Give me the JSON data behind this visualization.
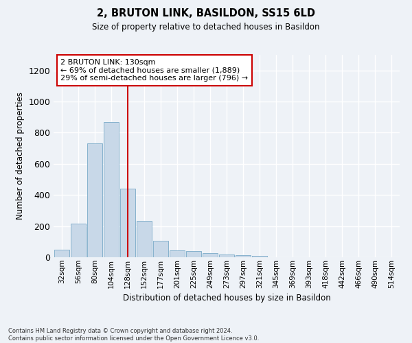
{
  "title": "2, BRUTON LINK, BASILDON, SS15 6LD",
  "subtitle": "Size of property relative to detached houses in Basildon",
  "xlabel": "Distribution of detached houses by size in Basildon",
  "ylabel": "Number of detached properties",
  "bar_color": "#c8d8e8",
  "bar_edge_color": "#7aaac8",
  "categories": [
    "32sqm",
    "56sqm",
    "80sqm",
    "104sqm",
    "128sqm",
    "152sqm",
    "177sqm",
    "201sqm",
    "225sqm",
    "249sqm",
    "273sqm",
    "297sqm",
    "321sqm",
    "345sqm",
    "369sqm",
    "393sqm",
    "418sqm",
    "442sqm",
    "466sqm",
    "490sqm",
    "514sqm"
  ],
  "values": [
    50,
    215,
    730,
    870,
    440,
    235,
    105,
    45,
    38,
    27,
    18,
    12,
    7,
    0,
    0,
    0,
    0,
    0,
    0,
    0,
    0
  ],
  "ylim": [
    0,
    1300
  ],
  "yticks": [
    0,
    200,
    400,
    600,
    800,
    1000,
    1200
  ],
  "property_line_x": 4,
  "annotation_text": "2 BRUTON LINK: 130sqm\n← 69% of detached houses are smaller (1,889)\n29% of semi-detached houses are larger (796) →",
  "annotation_box_color": "#ffffff",
  "annotation_border_color": "#cc0000",
  "footer": "Contains HM Land Registry data © Crown copyright and database right 2024.\nContains public sector information licensed under the Open Government Licence v3.0.",
  "bg_color": "#eef2f7",
  "grid_color": "#ffffff",
  "red_line_color": "#cc0000"
}
